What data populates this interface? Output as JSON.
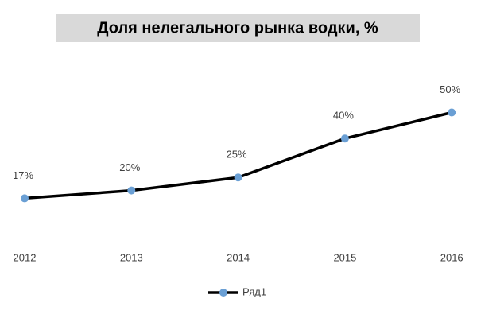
{
  "chart_data": {
    "type": "line",
    "title": "Доля нелегального рынка водки, %",
    "categories": [
      "2012",
      "2013",
      "2014",
      "2015",
      "2016"
    ],
    "series": [
      {
        "name": "Ряд1",
        "color": "#000000",
        "marker_color": "#6a9fd4",
        "values": [
          17,
          20,
          25,
          40,
          50
        ],
        "value_labels": [
          "17%",
          "20%",
          "25%",
          "40%",
          "50%"
        ]
      }
    ],
    "legend": "bottom"
  }
}
